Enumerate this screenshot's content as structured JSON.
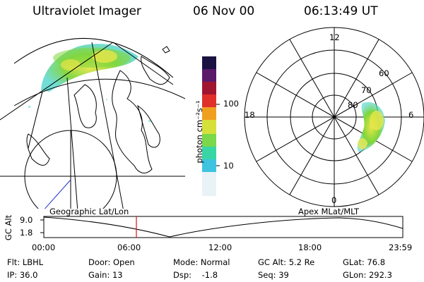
{
  "header": {
    "instrument": "Ultraviolet Imager",
    "date": "06 Nov 00",
    "time": "06:13:49 UT"
  },
  "colorbar": {
    "unit_label": "photon cm⁻²s⁻¹",
    "ticks": [
      "100",
      "10"
    ]
  },
  "polar_plot": {
    "mlt_labels": {
      "top": "12",
      "left": "18",
      "right": "6",
      "bottom": "0"
    },
    "lat_labels": [
      "60",
      "70",
      "80"
    ]
  },
  "timeline": {
    "left_title": "Geographic Lat/Lon",
    "right_title": "Apex MLat/MLT",
    "y_axis_label": "GC Alt",
    "y_ticks": [
      "9.0",
      "1.8"
    ],
    "x_ticks": [
      "00:00",
      "06:00",
      "12:00",
      "18:00",
      "23:59"
    ]
  },
  "info": {
    "flt": "Flt: LBHL",
    "ip": "IP: 36.0",
    "door": "Door: Open",
    "gain": "Gain: 13",
    "mode": "Mode: Normal",
    "dsp": "Dsp:    -1.8",
    "gc_alt": "GC Alt: 5.2 Re",
    "seq": "Seq: 39",
    "glat": "GLat: 76.8",
    "glon": "GLon: 292.3"
  },
  "colors": {
    "aurora_green": "#7fd63a",
    "aurora_yellow": "#e8e64a",
    "aurora_cyan": "#46d2c8",
    "marker_red": "#d01818"
  }
}
